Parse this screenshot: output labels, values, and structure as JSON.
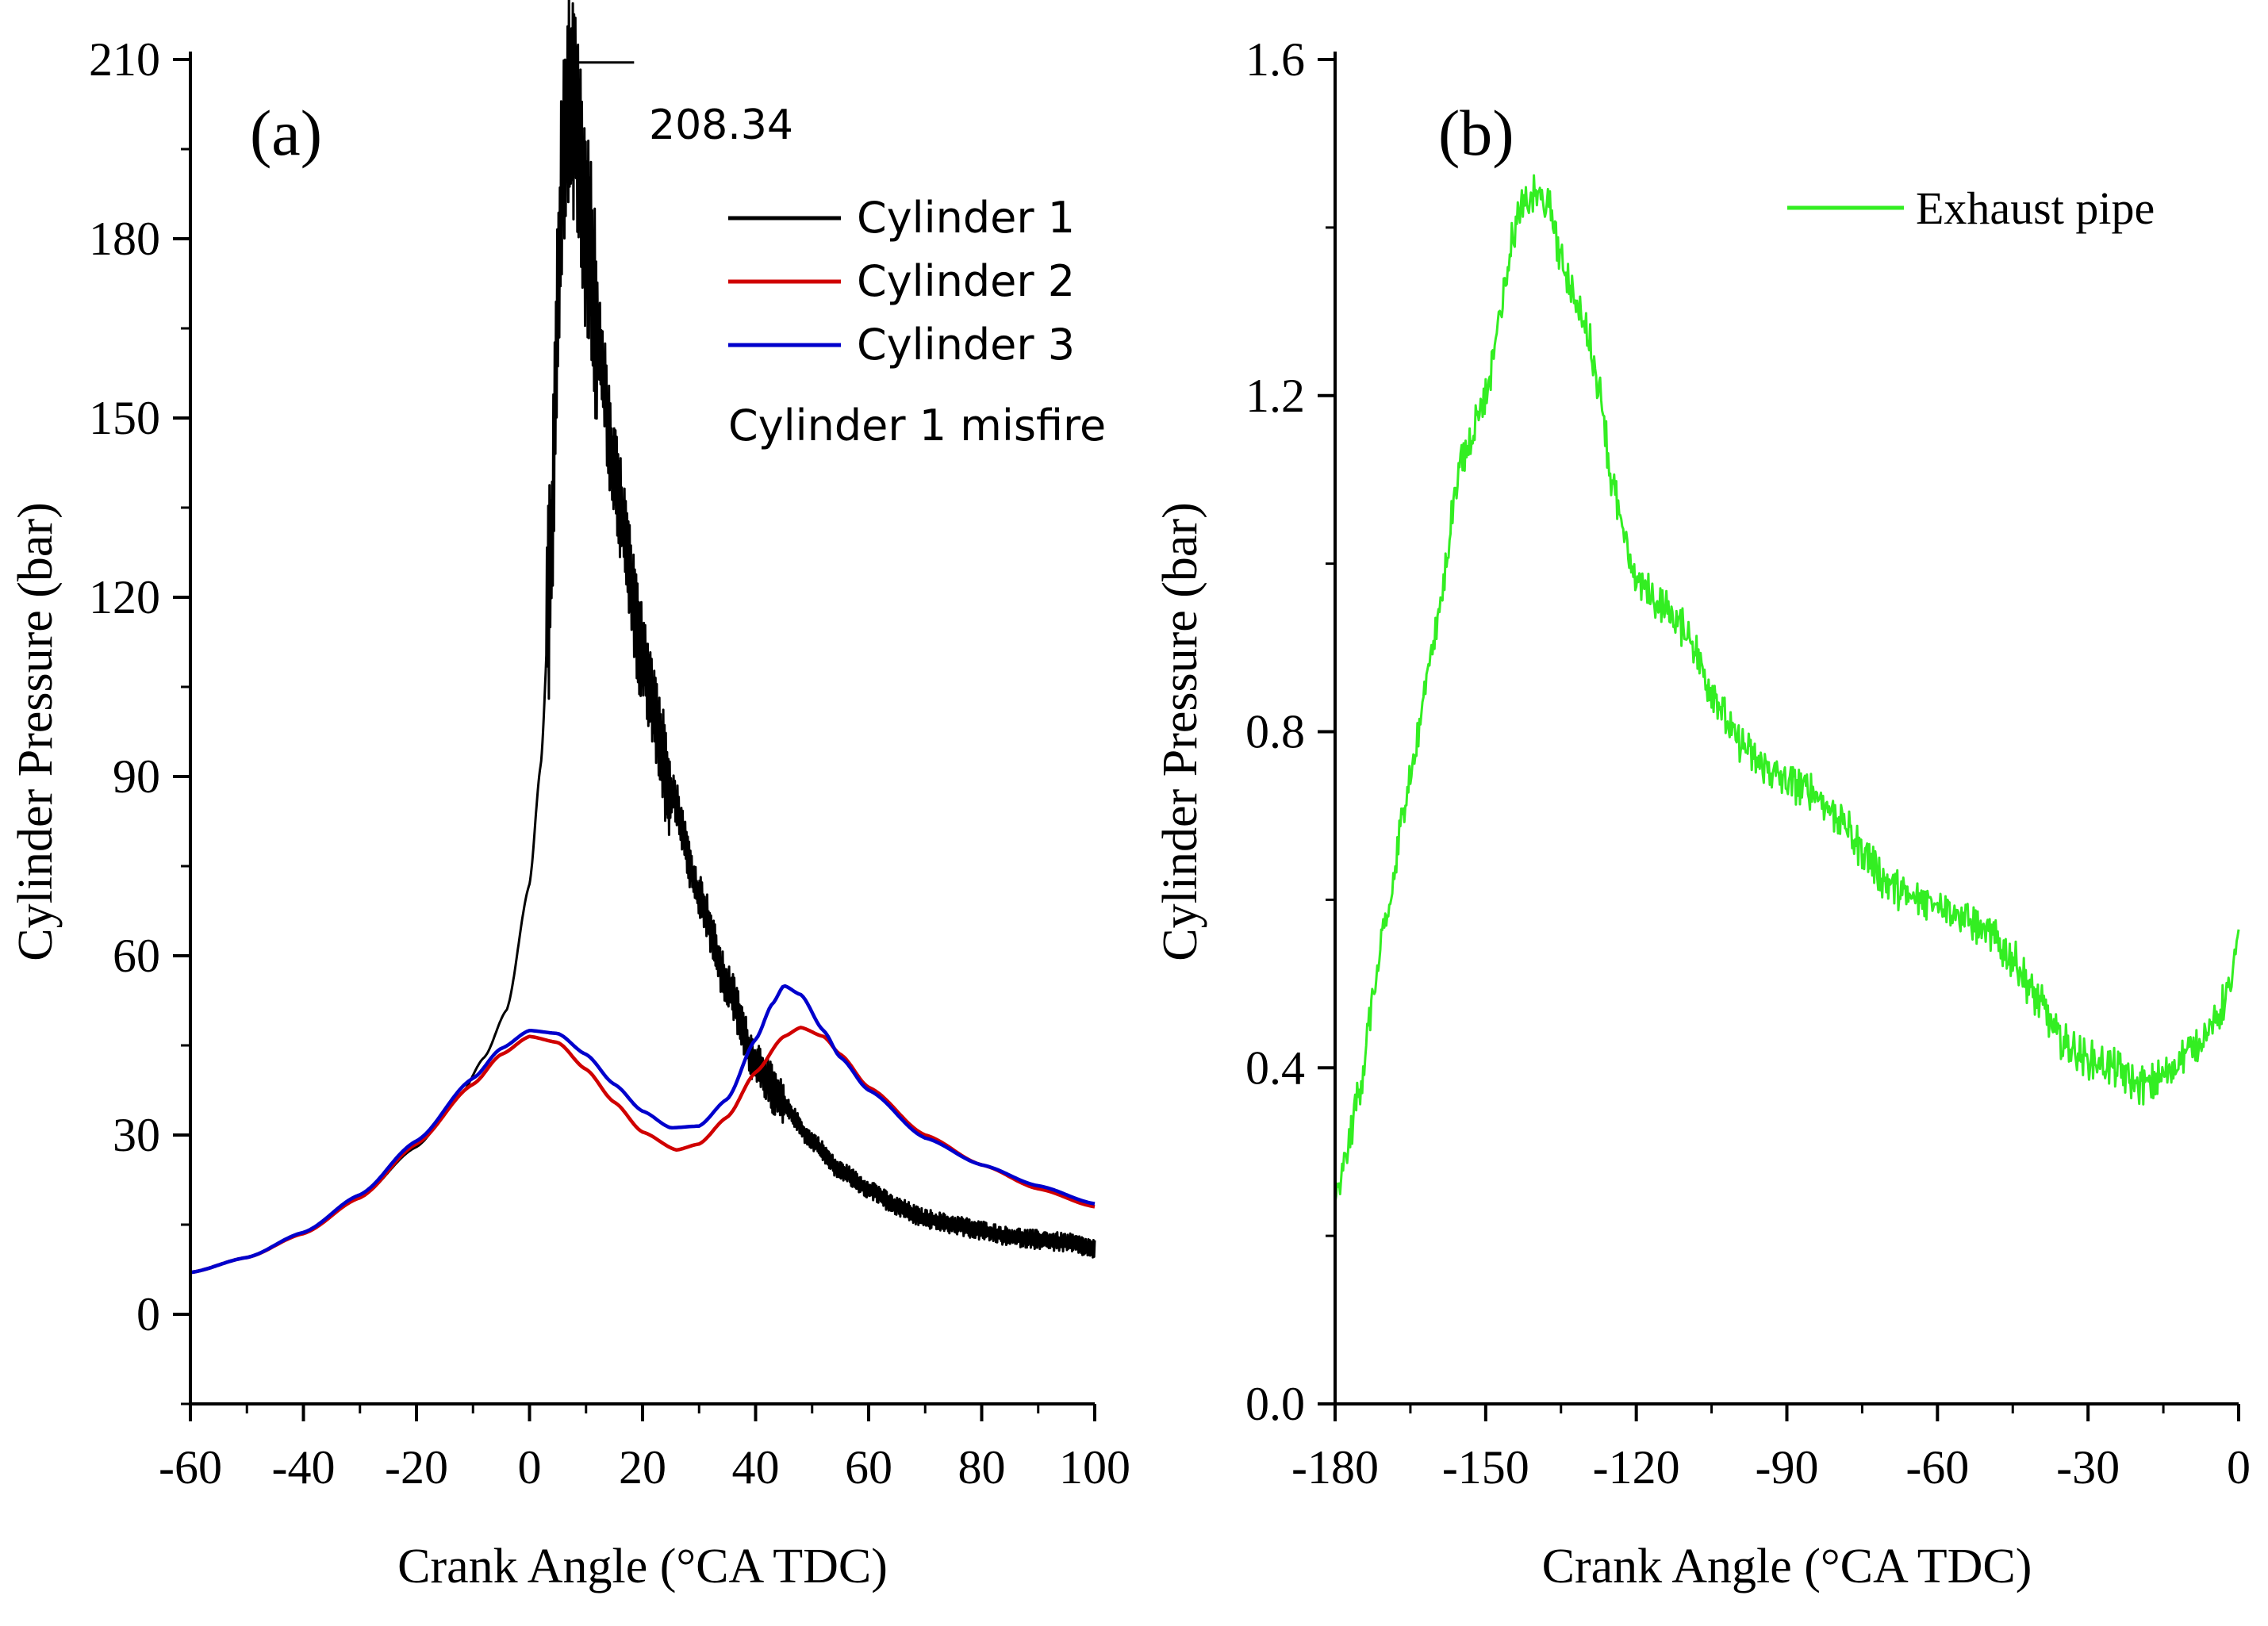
{
  "chart_data": [
    {
      "type": "line",
      "panel_label": "(a)",
      "xlabel": "Crank Angle (°CA TDC)",
      "ylabel": "Cylinder Pressure (bar)",
      "xlim": [
        -60,
        100
      ],
      "ylim": [
        -15,
        210
      ],
      "xticks": [
        -60,
        -40,
        -20,
        0,
        20,
        40,
        60,
        80,
        100
      ],
      "yticks": [
        0,
        30,
        60,
        90,
        120,
        150,
        180,
        210
      ],
      "grid": false,
      "legend_position": "top-right",
      "annotations": [
        {
          "text": "208.34",
          "x": 7,
          "y": 208.34
        },
        {
          "text": "Cylinder 1 misfire"
        }
      ],
      "series": [
        {
          "name": "Cylinder 1",
          "color": "#000000",
          "noise": true,
          "x": [
            -60,
            -50,
            -40,
            -30,
            -20,
            -12,
            -8,
            -4,
            0,
            2,
            4,
            5,
            6,
            7,
            8,
            10,
            12,
            15,
            20,
            25,
            30,
            35,
            40,
            45,
            50,
            55,
            60,
            65,
            70,
            75,
            80,
            85,
            90,
            95,
            100
          ],
          "y": [
            7,
            9.5,
            13.5,
            19.5,
            28,
            37,
            43,
            51,
            72,
            92,
            130,
            170,
            195,
            205,
            200,
            182,
            165,
            140,
            110,
            88,
            70,
            55,
            42,
            35,
            29,
            24,
            21,
            18,
            16,
            15,
            14,
            13,
            12.5,
            12,
            11
          ]
        },
        {
          "name": "Cylinder 2",
          "color": "#d00000",
          "x": [
            -60,
            -50,
            -40,
            -30,
            -20,
            -10,
            -5,
            0,
            5,
            10,
            15,
            20,
            26,
            30,
            35,
            40,
            45,
            48,
            52,
            55,
            60,
            70,
            80,
            90,
            100
          ],
          "y": [
            7,
            9.5,
            13.5,
            19.5,
            28.5,
            38.5,
            43.5,
            46.5,
            45.5,
            41,
            35.5,
            30.5,
            27.5,
            28.5,
            33,
            40.5,
            46.5,
            48,
            46.5,
            43.5,
            38,
            30,
            25,
            21,
            18
          ]
        },
        {
          "name": "Cylinder 3",
          "color": "#0000cc",
          "x": [
            -60,
            -50,
            -40,
            -30,
            -20,
            -10,
            -5,
            0,
            5,
            10,
            15,
            20,
            25,
            30,
            35,
            40,
            43,
            45,
            48,
            52,
            55,
            60,
            70,
            80,
            90,
            100
          ],
          "y": [
            7,
            9.5,
            13.7,
            20,
            29,
            39.5,
            44.5,
            47.5,
            47,
            43.5,
            38.5,
            34,
            31.2,
            31.5,
            36,
            46,
            52,
            55,
            53.5,
            47.5,
            43,
            37.5,
            29.5,
            25,
            21.5,
            18.5
          ]
        }
      ]
    },
    {
      "type": "line",
      "panel_label": "(b)",
      "xlabel": "Crank Angle (°CA TDC)",
      "ylabel": "Cylinder Pressure (bar)",
      "xlim": [
        -180,
        0
      ],
      "ylim": [
        0,
        1.6
      ],
      "xticks": [
        -180,
        -150,
        -120,
        -90,
        -60,
        -30,
        0
      ],
      "yticks": [
        0.0,
        0.4,
        0.8,
        1.2,
        1.6
      ],
      "ytick_labels": [
        "0.0",
        "0.4",
        "0.8",
        "1.2",
        "1.6"
      ],
      "grid": false,
      "legend_position": "top-right",
      "series": [
        {
          "name": "Exhaust pipe",
          "color": "#33ee22",
          "noise": true,
          "x": [
            -180,
            -178,
            -175,
            -172,
            -170,
            -165,
            -160,
            -155,
            -150,
            -147,
            -145,
            -143,
            -140,
            -137,
            -135,
            -130,
            -127,
            -125,
            -122,
            -120,
            -115,
            -110,
            -105,
            -100,
            -95,
            -90,
            -85,
            -80,
            -75,
            -70,
            -65,
            -60,
            -55,
            -50,
            -45,
            -40,
            -35,
            -30,
            -25,
            -20,
            -18,
            -15,
            -10,
            -5,
            -2,
            0
          ],
          "y": [
            0.24,
            0.29,
            0.38,
            0.5,
            0.57,
            0.75,
            0.92,
            1.12,
            1.2,
            1.3,
            1.38,
            1.42,
            1.44,
            1.42,
            1.36,
            1.28,
            1.2,
            1.1,
            1.02,
            0.98,
            0.95,
            0.92,
            0.85,
            0.79,
            0.76,
            0.74,
            0.73,
            0.7,
            0.66,
            0.62,
            0.6,
            0.6,
            0.58,
            0.56,
            0.53,
            0.48,
            0.43,
            0.41,
            0.4,
            0.38,
            0.38,
            0.39,
            0.42,
            0.45,
            0.49,
            0.55
          ]
        }
      ]
    }
  ]
}
